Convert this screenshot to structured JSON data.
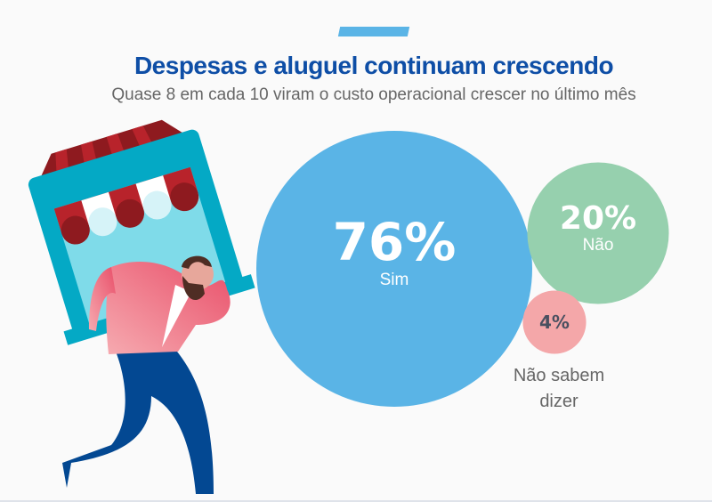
{
  "header": {
    "title": "Despesas e aluguel continuam crescendo",
    "subtitle": "Quase 8 em cada 10 viram o custo operacional crescer no último mês"
  },
  "chart_data": {
    "type": "bubble",
    "title": "Despesas e aluguel continuam crescendo",
    "subtitle": "Quase 8 em cada 10 viram o custo operacional crescer no último mês",
    "categories": [
      "Sim",
      "Não",
      "Não sabem dizer"
    ],
    "values": [
      76,
      20,
      4
    ],
    "labels": [
      "76%",
      "20%",
      "4%"
    ],
    "colors": [
      "#5ab4e6",
      "#96d0ae",
      "#f4a7a9"
    ],
    "unit": "%"
  }
}
